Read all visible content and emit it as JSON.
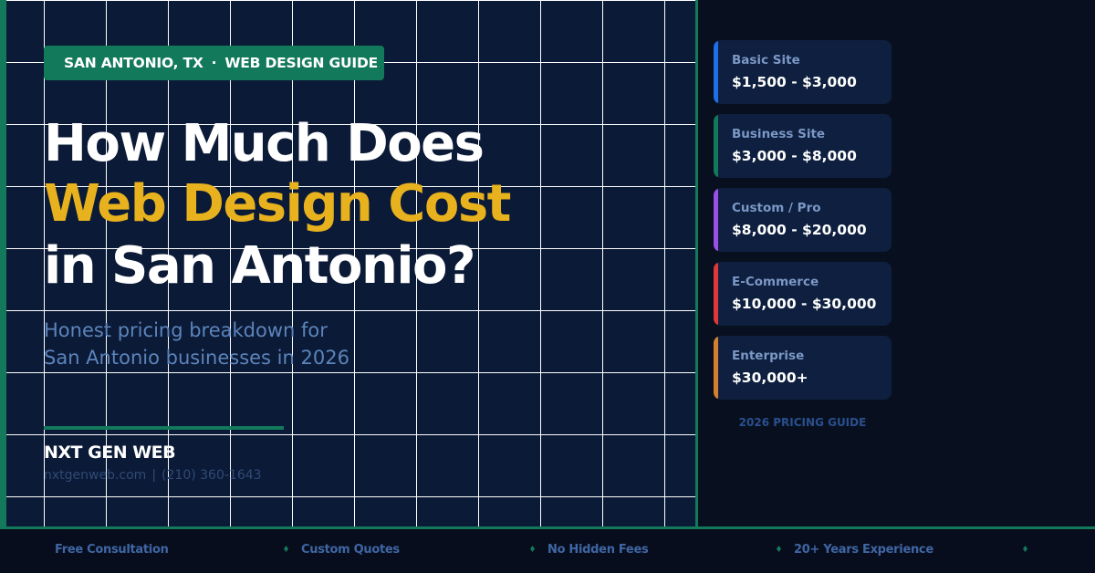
{
  "badge": {
    "location": "SAN ANTONIO, TX",
    "separator": "·",
    "topic": "WEB DESIGN GUIDE"
  },
  "headline": {
    "line1": "How Much Does",
    "line2": "Web Design Cost",
    "line3": "in San Antonio?"
  },
  "subtitle": {
    "line1": "Honest pricing breakdown for",
    "line2": "San Antonio businesses in 2026"
  },
  "brand": {
    "name": "NXT GEN WEB",
    "website": "nxtgenweb.com",
    "separator": "|",
    "phone": "(210) 360-1643"
  },
  "pricing": {
    "tiers": [
      {
        "name": "Basic Site",
        "price": "$1,500 - $3,000",
        "color": "#1f6fe8"
      },
      {
        "name": "Business Site",
        "price": "$3,000 - $8,000",
        "color": "#13795b"
      },
      {
        "name": "Custom / Pro",
        "price": "$8,000 - $20,000",
        "color": "#9b4fe6"
      },
      {
        "name": "E-Commerce",
        "price": "$10,000 - $30,000",
        "color": "#e03838"
      },
      {
        "name": "Enterprise",
        "price": "$30,000+",
        "color": "#d4802e"
      }
    ],
    "label": "2026 PRICING GUIDE"
  },
  "footer": {
    "items": [
      "Free Consultation",
      "Custom Quotes",
      "No Hidden Fees",
      "20+ Years Experience"
    ]
  },
  "colors": {
    "accent": "#13795b",
    "highlight": "#e8b21e",
    "background": "#0b1a36"
  }
}
